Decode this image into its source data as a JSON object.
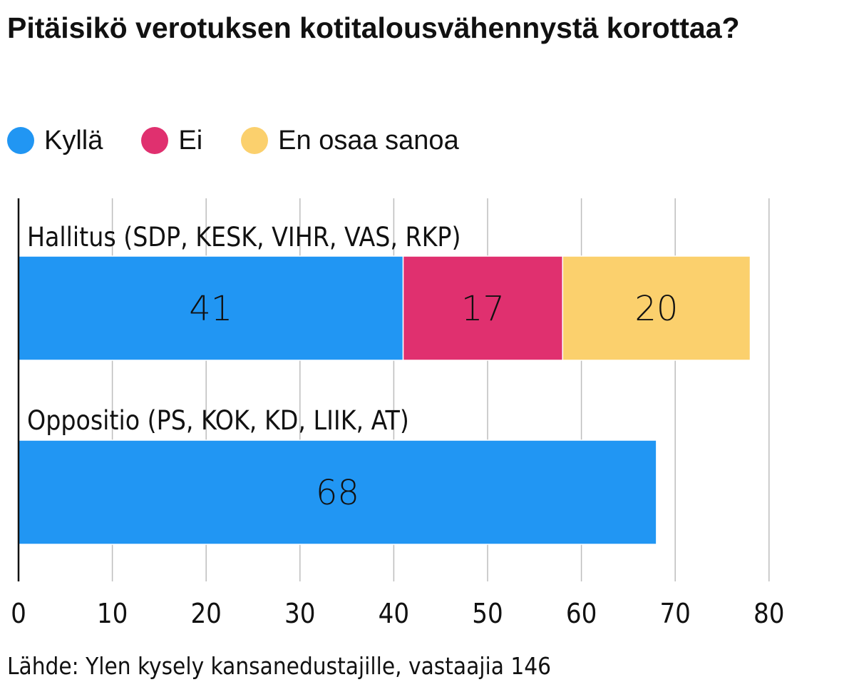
{
  "title": "Pitäisikö verotuksen kotitalousvähennystä korottaa?",
  "legend": [
    {
      "label": "Kyllä",
      "color": "#2196f3"
    },
    {
      "label": "Ei",
      "color": "#e0306f"
    },
    {
      "label": "En osaa sanoa",
      "color": "#fbd06d"
    }
  ],
  "source": "Lähde: Ylen kysely kansanedustajille, vastaajia 146",
  "chart_data": {
    "type": "bar",
    "orientation": "horizontal",
    "stacked": true,
    "title": "Pitäisikö verotuksen kotitalousvähennystä korottaa?",
    "categories": [
      "Hallitus (SDP, KESK, VIHR, VAS, RKP)",
      "Oppositio (PS, KOK, KD, LIIK, AT)"
    ],
    "series": [
      {
        "name": "Kyllä",
        "color": "#2196f3",
        "values": [
          41,
          68
        ]
      },
      {
        "name": "Ei",
        "color": "#e0306f",
        "values": [
          17,
          null
        ]
      },
      {
        "name": "En osaa sanoa",
        "color": "#fbd06d",
        "values": [
          20,
          null
        ]
      }
    ],
    "xlim": [
      0,
      80
    ],
    "xticks": [
      0,
      10,
      20,
      30,
      40,
      50,
      60,
      70,
      80
    ],
    "grid": true,
    "legend_position": "top-left"
  }
}
